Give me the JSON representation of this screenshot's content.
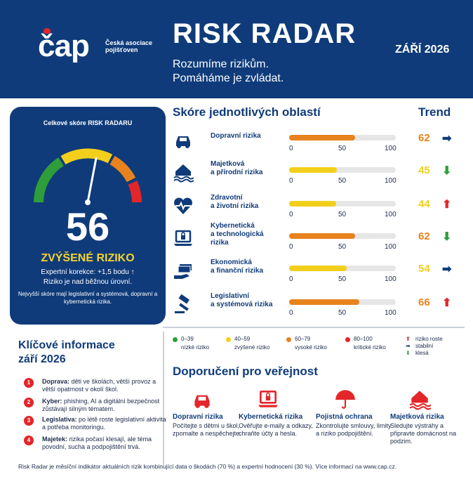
{
  "header": {
    "logo_text": "čap",
    "logo_tagline": "Česká asociace pojišťoven",
    "title": "RISK RADAR",
    "subtitle_1": "Rozumíme rizikům.",
    "subtitle_2": "Pomáháme je zvládat.",
    "month": "ZÁŘÍ 2026"
  },
  "score_card": {
    "label": "Celkové skóre RISK RADARU",
    "score": "56",
    "gauge_value_pct": 56,
    "level": "ZVÝŠENÉ RIZIKO",
    "correction": "Expertní korekce: +1,5 bodu ↑",
    "correction_2": "Riziko je nad běžnou úrovní.",
    "note": "Nejvyšší skóre mají legislativní a systémová, dopravní a kybernetická rizika."
  },
  "areas": {
    "heading": "Skóre jednotlivých oblastí",
    "trend_heading": "Trend",
    "axis": [
      "0",
      "50",
      "100"
    ],
    "rows": [
      {
        "label_1": "Dopravní rizika",
        "label_2": "",
        "label_3": "",
        "value": "62",
        "color": "#e8821c",
        "trend": "➡",
        "trend_color": "#0f3b7a",
        "icon": "car-icon"
      },
      {
        "label_1": "Majetková",
        "label_2": "a přírodní rizika",
        "label_3": "",
        "value": "45",
        "color": "#f2cf1a",
        "trend": "⬇",
        "trend_color": "#2e9e3a",
        "icon": "flood-house-icon"
      },
      {
        "label_1": "Zdravotní",
        "label_2": "a životní rizika",
        "label_3": "",
        "value": "44",
        "color": "#f2cf1a",
        "trend": "⬆",
        "trend_color": "#e3262a",
        "icon": "heart-pulse-icon"
      },
      {
        "label_1": "Kybernetická",
        "label_2": "a technologická",
        "label_3": "rizika",
        "value": "62",
        "color": "#e8821c",
        "trend": "⬇",
        "trend_color": "#2e9e3a",
        "icon": "laptop-lock-icon"
      },
      {
        "label_1": "Ekonomická",
        "label_2": "a finanční rizika",
        "label_3": "",
        "value": "54",
        "color": "#f2cf1a",
        "trend": "➡",
        "trend_color": "#0f3b7a",
        "icon": "money-hand-icon"
      },
      {
        "label_1": "Legislativní",
        "label_2": "a systémová rizika",
        "label_3": "",
        "value": "66",
        "color": "#e8821c",
        "trend": "⬆",
        "trend_color": "#e3262a",
        "icon": "gavel-icon"
      }
    ]
  },
  "legend": {
    "items": [
      {
        "range": "0–39",
        "text": "nízké riziko",
        "color": "#2e9e3a"
      },
      {
        "range": "40–59",
        "text": "zvýšené riziko",
        "color": "#f2cf1a"
      },
      {
        "range": "60–79",
        "text": "vysoké riziko",
        "color": "#e8821c"
      },
      {
        "range": "80–100",
        "text": "kritické riziko",
        "color": "#e3262a"
      }
    ],
    "trend_up": "riziko roste",
    "trend_flat": "stabilní",
    "trend_down": "klesá"
  },
  "key_info": {
    "heading_1": "Klíčové informace",
    "heading_2": "září 2026",
    "items": [
      {
        "n": "1",
        "bold": "Doprava:",
        "text": " děti ve školách, větší provoz a větší opatrnost v okolí škol."
      },
      {
        "n": "2",
        "bold": "Kyber:",
        "text": " phishing, AI a digitální bezpečnost zůstávají silným tématem."
      },
      {
        "n": "3",
        "bold": "Legislativa:",
        "text": " po létě roste legislativní aktivita a potřeba monitoringu."
      },
      {
        "n": "4",
        "bold": "Majetek:",
        "text": " rizika počasí klesají, ale téma povodní, sucha a podpojištění trvá."
      }
    ]
  },
  "recommendations": {
    "heading": "Doporučení pro veřejnost",
    "items": [
      {
        "title": "Dopravní rizika",
        "text": "Počítejte s dětmi u škol, zpomalte a nespěchejte.",
        "icon": "car-icon"
      },
      {
        "title": "Kybernetická rizika",
        "text": "Ověřujte e-maily a odkazy, chraňte účty a hesla.",
        "icon": "laptop-lock-icon"
      },
      {
        "title": "Pojistná ochrana",
        "text": "Zkontrolujte smlouvy, limity a riziko podpojištění.",
        "icon": "umbrella-icon"
      },
      {
        "title": "Majetková rizika",
        "text": "Sledujte výstrahy a připravte domácnost na podzim.",
        "icon": "flood-house-icon"
      }
    ]
  },
  "footer": "Risk Radar je měsíční indikátor aktuálních rizik kombinující data o škodách (70 %) a expertní hodnocení (30 %). Více informací na www.cap.cz."
}
